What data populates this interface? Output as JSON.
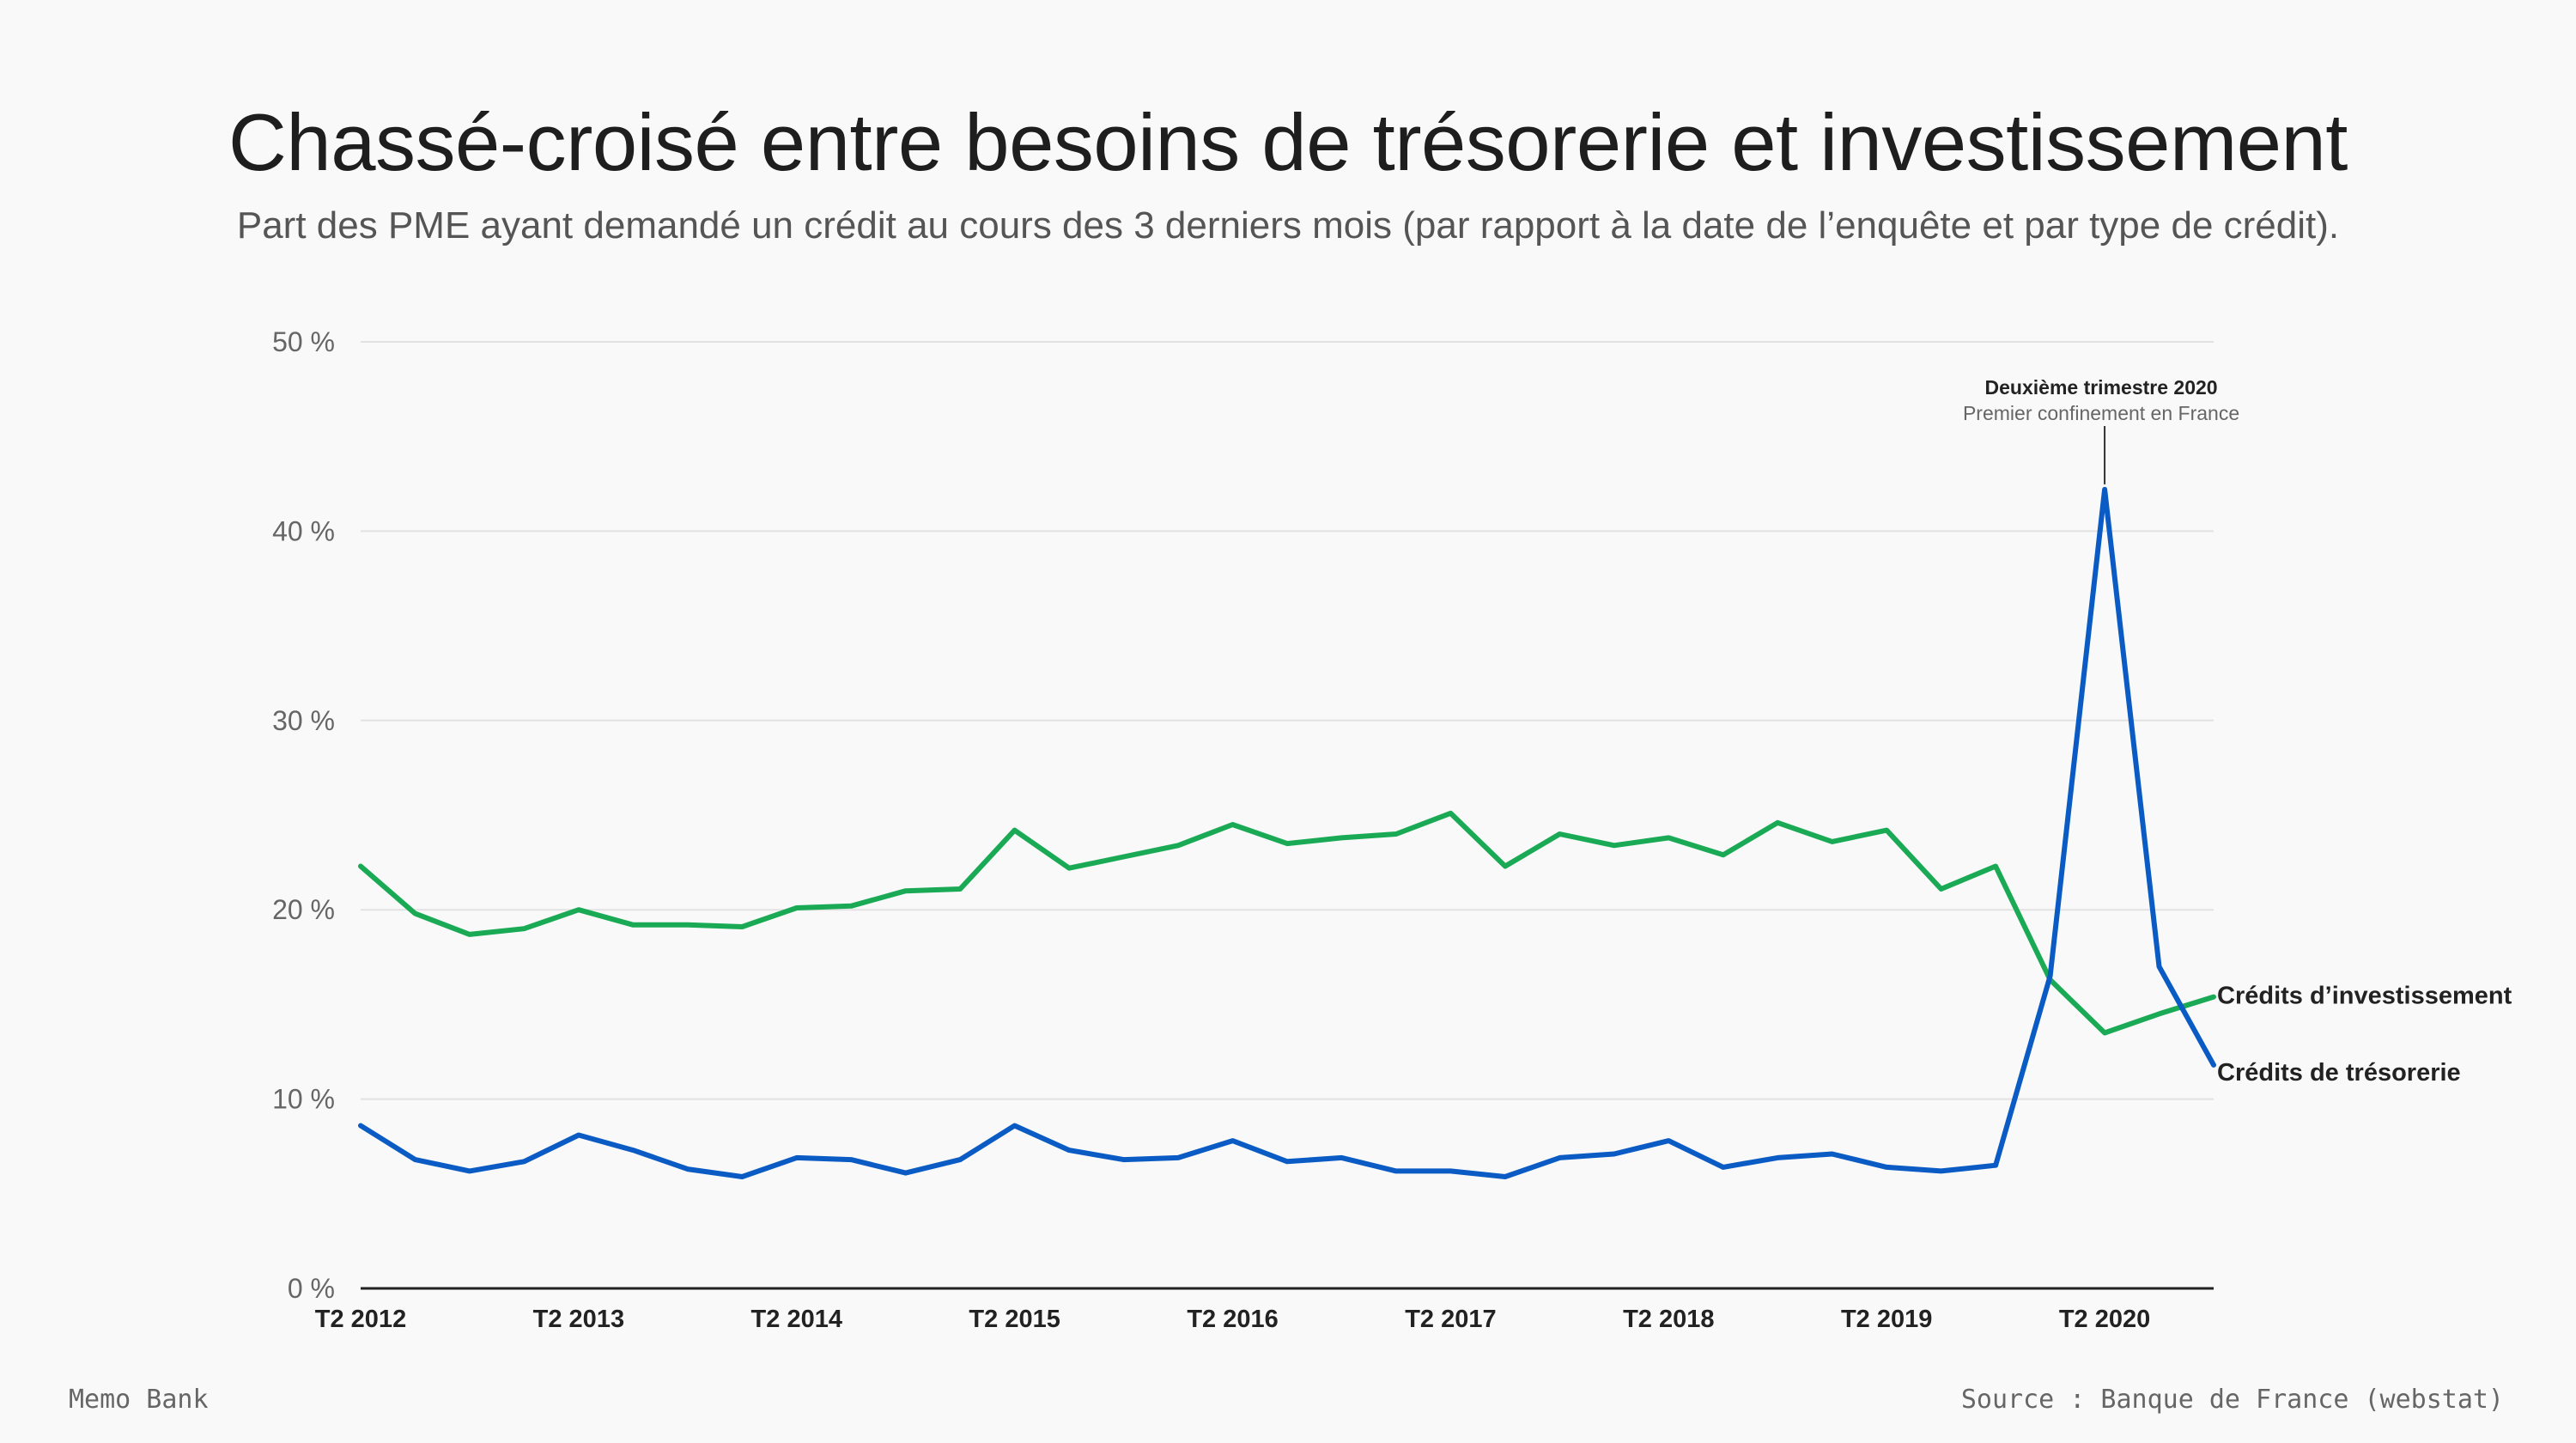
{
  "header": {
    "title": "Chassé-croisé entre besoins de trésorerie et investissement",
    "subtitle": "Part des PME ayant demandé un crédit au cours des 3 derniers mois (par rapport à la date de l’enquête et par type de crédit)."
  },
  "footer": {
    "left": "Memo Bank",
    "right": "Source : Banque de France (webstat)"
  },
  "colors": {
    "investissement": "#1aaa55",
    "tresorerie": "#0b5bc4",
    "grid": "#e2e2e2",
    "axis": "#222222"
  },
  "chart_data": {
    "type": "line",
    "title": "Chassé-croisé entre besoins de trésorerie et investissement",
    "ylim": [
      0,
      50
    ],
    "y_ticks": [
      0,
      10,
      20,
      30,
      40,
      50
    ],
    "y_tick_labels": [
      "0 %",
      "10 %",
      "20 %",
      "30 %",
      "40 %",
      "50 %"
    ],
    "x_tick_labels": [
      "T2 2012",
      "T2 2013",
      "T2 2014",
      "T2 2015",
      "T2 2016",
      "T2 2017",
      "T2 2018",
      "T2 2019",
      "T2 2020"
    ],
    "x_tick_indices": [
      0,
      4,
      8,
      12,
      16,
      20,
      24,
      28,
      32
    ],
    "grid": true,
    "x": [
      "T2 2012",
      "T3 2012",
      "T4 2012",
      "T1 2013",
      "T2 2013",
      "T3 2013",
      "T4 2013",
      "T1 2014",
      "T2 2014",
      "T3 2014",
      "T4 2014",
      "T1 2015",
      "T2 2015",
      "T3 2015",
      "T4 2015",
      "T1 2016",
      "T2 2016",
      "T3 2016",
      "T4 2016",
      "T1 2017",
      "T2 2017",
      "T3 2017",
      "T4 2017",
      "T1 2018",
      "T2 2018",
      "T3 2018",
      "T4 2018",
      "T1 2019",
      "T2 2019",
      "T3 2019",
      "T4 2019",
      "T1 2020",
      "T2 2020",
      "T3 2020",
      "T4 2020"
    ],
    "series": [
      {
        "name": "Crédits d’investissement",
        "key": "investissement",
        "values": [
          22.3,
          19.8,
          18.7,
          19.0,
          20.0,
          19.2,
          19.2,
          19.1,
          20.1,
          20.2,
          21.0,
          21.1,
          24.2,
          22.2,
          22.8,
          23.4,
          24.5,
          23.5,
          23.8,
          24.0,
          25.1,
          22.3,
          24.0,
          23.4,
          23.8,
          22.9,
          24.6,
          23.6,
          24.2,
          21.1,
          22.3,
          16.3,
          13.5,
          14.5,
          15.4
        ]
      },
      {
        "name": "Crédits de trésorerie",
        "key": "tresorerie",
        "values": [
          8.6,
          6.8,
          6.2,
          6.7,
          8.1,
          7.3,
          6.3,
          5.9,
          6.9,
          6.8,
          6.1,
          6.8,
          8.6,
          7.3,
          6.8,
          6.9,
          7.8,
          6.7,
          6.9,
          6.2,
          6.2,
          5.9,
          6.9,
          7.1,
          7.8,
          6.4,
          6.9,
          7.1,
          6.4,
          6.2,
          6.5,
          16.5,
          42.2,
          17.0,
          11.8
        ]
      }
    ],
    "annotation": {
      "index": 32,
      "title": "Deuxième trimestre 2020",
      "subtitle": "Premier confinement en France"
    }
  }
}
